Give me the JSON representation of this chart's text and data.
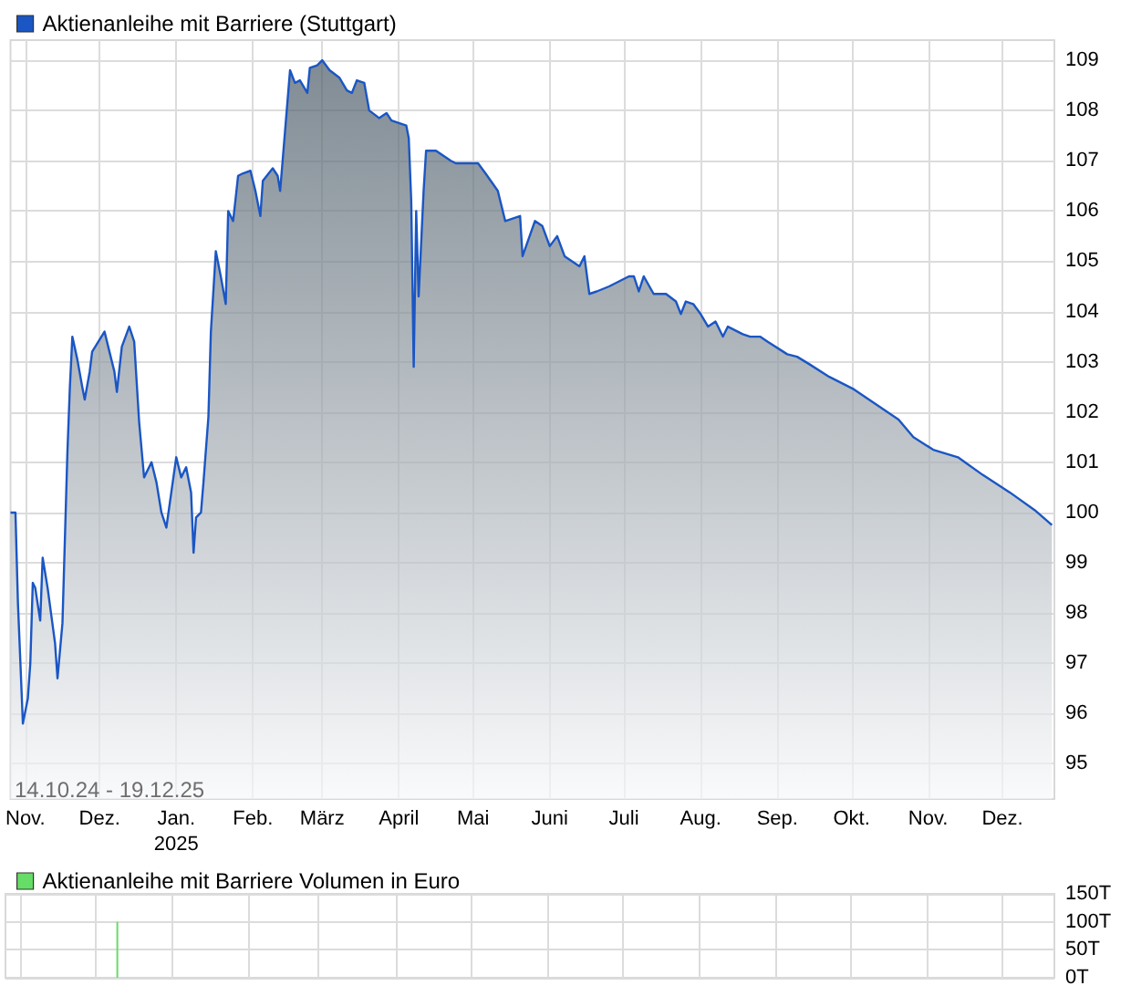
{
  "chart_data": [
    {
      "type": "area",
      "series": [
        {
          "name": "Aktienanleihe mit Barriere (Stuttgart)",
          "color": "#1a56c4",
          "x": [
            "2024-10-26",
            "2024-10-28",
            "2024-10-29",
            "2024-10-31",
            "2024-11-02",
            "2024-11-03",
            "2024-11-04",
            "2024-11-05",
            "2024-11-07",
            "2024-11-08",
            "2024-11-10",
            "2024-11-13",
            "2024-11-14",
            "2024-11-16",
            "2024-11-17",
            "2024-11-18",
            "2024-11-19",
            "2024-11-20",
            "2024-11-22",
            "2024-11-24",
            "2024-11-25",
            "2024-11-27",
            "2024-11-28",
            "2024-12-03",
            "2024-12-05",
            "2024-12-07",
            "2024-12-08",
            "2024-12-10",
            "2024-12-13",
            "2024-12-15",
            "2024-12-17",
            "2024-12-19",
            "2024-12-22",
            "2024-12-24",
            "2024-12-26",
            "2024-12-28",
            "2024-12-30",
            "2025-01-01",
            "2025-01-03",
            "2025-01-05",
            "2025-01-07",
            "2025-01-08",
            "2025-01-09",
            "2025-01-11",
            "2025-01-12",
            "2025-01-14",
            "2025-01-15",
            "2025-01-17",
            "2025-01-19",
            "2025-01-21",
            "2025-01-22",
            "2025-01-24",
            "2025-01-26",
            "2025-01-28",
            "2025-01-31",
            "2025-02-02",
            "2025-02-04",
            "2025-02-05",
            "2025-02-09",
            "2025-02-11",
            "2025-02-12",
            "2025-02-14",
            "2025-02-16",
            "2025-02-18",
            "2025-02-20",
            "2025-02-23",
            "2025-02-24",
            "2025-02-27",
            "2025-03-01",
            "2025-03-04",
            "2025-03-08",
            "2025-03-11",
            "2025-03-13",
            "2025-03-15",
            "2025-03-18",
            "2025-03-20",
            "2025-03-24",
            "2025-03-27",
            "2025-03-29",
            "2025-04-04",
            "2025-04-05",
            "2025-04-06",
            "2025-04-07",
            "2025-04-08",
            "2025-04-09",
            "2025-04-11",
            "2025-04-12",
            "2025-04-16",
            "2025-04-22",
            "2025-04-24",
            "2025-04-29",
            "2025-05-03",
            "2025-05-06",
            "2025-05-11",
            "2025-05-14",
            "2025-05-20",
            "2025-05-21",
            "2025-05-26",
            "2025-05-29",
            "2025-06-01",
            "2025-06-04",
            "2025-06-07",
            "2025-06-13",
            "2025-06-15",
            "2025-06-17",
            "2025-06-20",
            "2025-06-25",
            "2025-07-03",
            "2025-07-05",
            "2025-07-07",
            "2025-07-09",
            "2025-07-13",
            "2025-07-18",
            "2025-07-22",
            "2025-07-24",
            "2025-07-26",
            "2025-07-29",
            "2025-08-01",
            "2025-08-04",
            "2025-08-07",
            "2025-08-10",
            "2025-08-12",
            "2025-08-18",
            "2025-08-21",
            "2025-08-25",
            "2025-08-28",
            "2025-09-05",
            "2025-09-09",
            "2025-09-14",
            "2025-09-22",
            "2025-10-02",
            "2025-10-11",
            "2025-10-20",
            "2025-10-26",
            "2025-11-03",
            "2025-11-13",
            "2025-11-23",
            "2025-12-04",
            "2025-12-14",
            "2025-12-21"
          ],
          "values": [
            100.0,
            100.0,
            98.2,
            95.8,
            96.3,
            97.0,
            98.6,
            98.5,
            97.85,
            99.1,
            98.5,
            97.4,
            96.7,
            97.8,
            99.5,
            101.2,
            102.5,
            103.5,
            103.05,
            102.5,
            102.25,
            102.8,
            103.2,
            103.6,
            103.2,
            102.8,
            102.4,
            103.3,
            103.7,
            103.4,
            101.8,
            100.7,
            101.0,
            100.6,
            100.0,
            99.7,
            100.4,
            101.1,
            100.7,
            100.9,
            100.4,
            99.2,
            99.9,
            100.0,
            100.6,
            101.9,
            103.6,
            105.2,
            104.7,
            104.15,
            106.0,
            105.8,
            106.7,
            106.75,
            106.8,
            106.4,
            105.9,
            106.6,
            106.85,
            106.7,
            106.4,
            107.6,
            108.8,
            108.55,
            108.6,
            108.35,
            108.85,
            108.9,
            109.0,
            108.8,
            108.65,
            108.4,
            108.35,
            108.6,
            108.55,
            108.0,
            107.85,
            107.95,
            107.8,
            107.7,
            107.45,
            106.2,
            102.9,
            106.0,
            104.3,
            106.4,
            107.2,
            107.2,
            107.0,
            106.95,
            106.95,
            106.95,
            106.75,
            106.4,
            105.8,
            105.9,
            105.1,
            105.8,
            105.7,
            105.3,
            105.5,
            105.1,
            104.9,
            105.1,
            104.35,
            104.4,
            104.5,
            104.7,
            104.7,
            104.4,
            104.7,
            104.35,
            104.35,
            104.2,
            103.95,
            104.2,
            104.15,
            103.95,
            103.7,
            103.8,
            103.5,
            103.7,
            103.55,
            103.5,
            103.5,
            103.4,
            103.15,
            103.1,
            102.95,
            102.7,
            102.45,
            102.15,
            101.85,
            101.5,
            101.25,
            101.1,
            100.75,
            100.4,
            100.05,
            99.75
          ]
        }
      ],
      "xlim": [
        "2024-10-26",
        "2025-12-22"
      ],
      "xticks": [
        {
          "value": "2024-11-01",
          "label": "Nov."
        },
        {
          "value": "2024-12-01",
          "label": "Dez."
        },
        {
          "value": "2025-01-01",
          "label": "Jan.\n2025"
        },
        {
          "value": "2025-02-01",
          "label": "Feb."
        },
        {
          "value": "2025-03-01",
          "label": "März"
        },
        {
          "value": "2025-04-01",
          "label": "April"
        },
        {
          "value": "2025-05-01",
          "label": "Mai"
        },
        {
          "value": "2025-06-01",
          "label": "Juni"
        },
        {
          "value": "2025-07-01",
          "label": "Juli"
        },
        {
          "value": "2025-08-01",
          "label": "Aug."
        },
        {
          "value": "2025-09-01",
          "label": "Sep."
        },
        {
          "value": "2025-10-01",
          "label": "Okt."
        },
        {
          "value": "2025-11-01",
          "label": "Nov."
        },
        {
          "value": "2025-12-01",
          "label": "Dez."
        }
      ],
      "ylim": [
        94.3,
        109.4
      ],
      "yticks": [
        95,
        96,
        97,
        98,
        99,
        100,
        101,
        102,
        103,
        104,
        105,
        106,
        107,
        108,
        109
      ],
      "grid": true,
      "legend": "top left",
      "marker": "none",
      "annotations": [
        "14.10.24 - 19.12.25"
      ]
    },
    {
      "type": "bar",
      "series": [
        {
          "name": "Aktienanleihe mit Barriere Volumen in Euro",
          "color": "#66dd66",
          "x": [
            "2024-12-10"
          ],
          "values": [
            100
          ]
        }
      ],
      "xlim": [
        "2024-10-26",
        "2025-12-22"
      ],
      "xticks": [
        {
          "value": "2024-11-01",
          "label": null
        },
        {
          "value": "2024-12-01",
          "label": null
        },
        {
          "value": "2025-01-01",
          "label": null
        },
        {
          "value": "2025-02-01",
          "label": null
        },
        {
          "value": "2025-03-01",
          "label": null
        },
        {
          "value": "2025-04-01",
          "label": null
        },
        {
          "value": "2025-05-01",
          "label": null
        },
        {
          "value": "2025-06-01",
          "label": null
        },
        {
          "value": "2025-07-01",
          "label": null
        },
        {
          "value": "2025-08-01",
          "label": null
        },
        {
          "value": "2025-09-01",
          "label": null
        },
        {
          "value": "2025-10-01",
          "label": null
        },
        {
          "value": "2025-11-01",
          "label": null
        },
        {
          "value": "2025-12-01",
          "label": null
        }
      ],
      "ylim": [
        0,
        150
      ],
      "yticks": [
        {
          "value": 0,
          "label": "0T"
        },
        {
          "value": 50,
          "label": "50T"
        },
        {
          "value": 100,
          "label": "100T"
        },
        {
          "value": 150,
          "label": "150T"
        }
      ],
      "grid": true,
      "legend": "top left",
      "tick_labels": "y"
    }
  ]
}
